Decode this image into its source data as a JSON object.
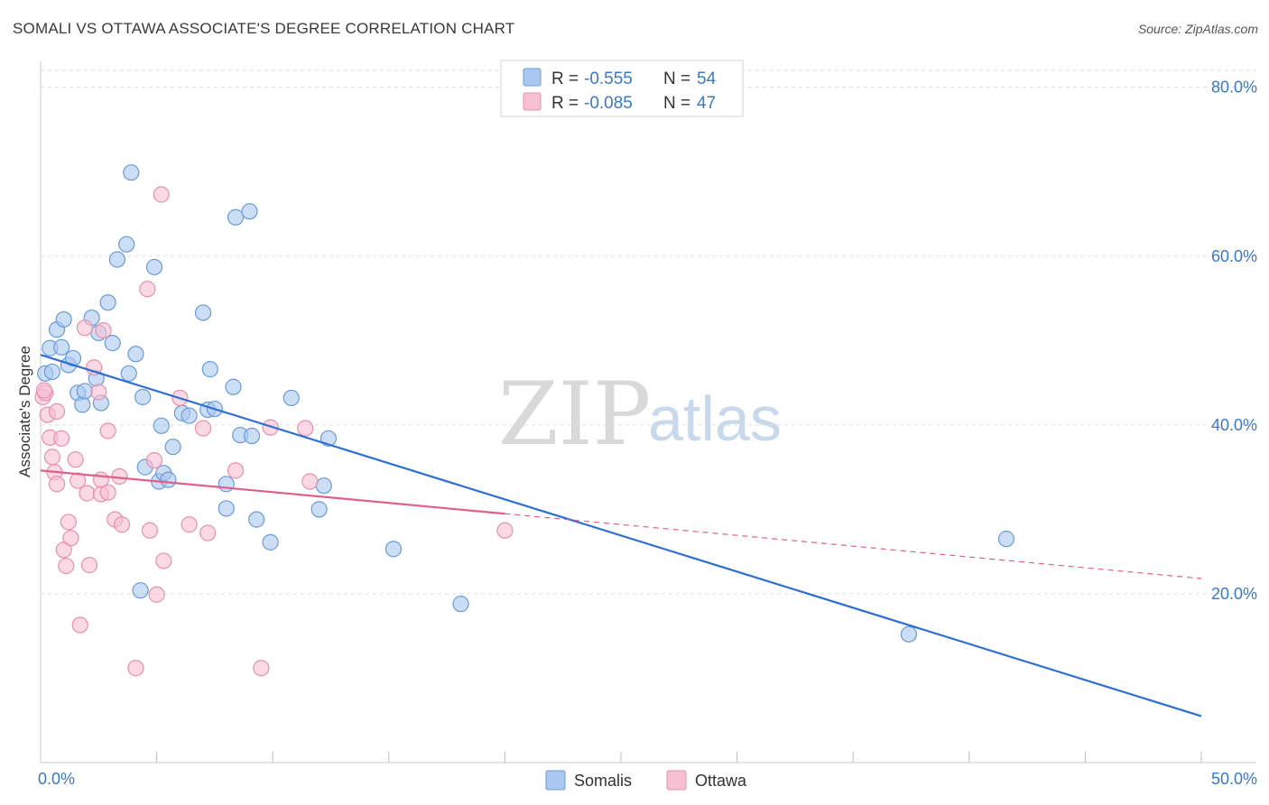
{
  "title": "SOMALI VS OTTAWA ASSOCIATE'S DEGREE CORRELATION CHART",
  "source": "Source: ZipAtlas.com",
  "watermark": {
    "zip": "ZIP",
    "atlas": "atlas"
  },
  "colors": {
    "somalis_fill": "#aac8ef",
    "somalis_stroke": "#6a9bd8",
    "somalis_line": "#2f6fd0",
    "ottawa_fill": "#f6c0d2",
    "ottawa_stroke": "#e890ae",
    "ottawa_line": "#e0608a",
    "grid": "#dddddd",
    "axis_text": "#3b78c9"
  },
  "legend": {
    "rows": [
      {
        "r_label": "R =",
        "r_value": "-0.555",
        "n_label": "N =",
        "n_value": "54",
        "series": "Somalis"
      },
      {
        "r_label": "R =",
        "r_value": "-0.085",
        "n_label": "N =",
        "n_value": "47",
        "series": "Ottawa"
      }
    ]
  },
  "bottom_legend": [
    "Somalis",
    "Ottawa"
  ],
  "chart_data": {
    "type": "scatter",
    "title": "SOMALI VS OTTAWA ASSOCIATE'S DEGREE CORRELATION CHART",
    "xlabel": "",
    "ylabel": "Associate's Degree",
    "xlim": [
      0,
      50
    ],
    "ylim": [
      0,
      82
    ],
    "x_tick_labels": [
      {
        "value": 0,
        "label": "0.0%"
      },
      {
        "value": 50,
        "label": "50.0%"
      }
    ],
    "y_tick_labels": [
      {
        "value": 20,
        "label": "20.0%"
      },
      {
        "value": 40,
        "label": "40.0%"
      },
      {
        "value": 60,
        "label": "60.0%"
      },
      {
        "value": 80,
        "label": "80.0%"
      }
    ],
    "y_gridlines": [
      20,
      40,
      60,
      80,
      82
    ],
    "series": [
      {
        "name": "Somalis",
        "r": -0.555,
        "n": 54,
        "trend": {
          "x0": 0,
          "y0": 48.3,
          "x1": 50,
          "y1": 5.5,
          "solid_to": 50
        },
        "points": [
          [
            0.2,
            46.1
          ],
          [
            0.4,
            49.1
          ],
          [
            0.5,
            46.3
          ],
          [
            0.7,
            51.3
          ],
          [
            0.9,
            49.2
          ],
          [
            1.0,
            52.5
          ],
          [
            1.2,
            47.1
          ],
          [
            1.4,
            47.9
          ],
          [
            1.6,
            43.8
          ],
          [
            1.8,
            42.4
          ],
          [
            1.9,
            44.0
          ],
          [
            2.2,
            52.7
          ],
          [
            2.4,
            45.5
          ],
          [
            2.6,
            42.6
          ],
          [
            2.5,
            50.9
          ],
          [
            3.1,
            49.7
          ],
          [
            2.9,
            54.5
          ],
          [
            3.3,
            59.6
          ],
          [
            3.7,
            61.4
          ],
          [
            3.8,
            46.1
          ],
          [
            3.9,
            69.9
          ],
          [
            4.1,
            48.4
          ],
          [
            4.3,
            20.4
          ],
          [
            4.4,
            43.3
          ],
          [
            4.5,
            35.0
          ],
          [
            4.9,
            58.7
          ],
          [
            5.1,
            33.3
          ],
          [
            5.2,
            39.9
          ],
          [
            5.3,
            34.3
          ],
          [
            5.5,
            33.5
          ],
          [
            5.7,
            37.4
          ],
          [
            6.1,
            41.4
          ],
          [
            6.4,
            41.1
          ],
          [
            7.0,
            53.3
          ],
          [
            7.2,
            41.8
          ],
          [
            7.3,
            46.6
          ],
          [
            7.5,
            41.9
          ],
          [
            8.0,
            30.1
          ],
          [
            8.0,
            33.0
          ],
          [
            8.3,
            44.5
          ],
          [
            8.4,
            64.6
          ],
          [
            8.6,
            38.8
          ],
          [
            9.0,
            65.3
          ],
          [
            9.1,
            38.7
          ],
          [
            9.3,
            28.8
          ],
          [
            9.9,
            26.1
          ],
          [
            10.8,
            43.2
          ],
          [
            12.0,
            30.0
          ],
          [
            12.2,
            32.8
          ],
          [
            12.4,
            38.4
          ],
          [
            15.2,
            25.3
          ],
          [
            18.1,
            18.8
          ],
          [
            37.4,
            15.2
          ],
          [
            41.6,
            26.5
          ]
        ]
      },
      {
        "name": "Ottawa",
        "r": -0.085,
        "n": 47,
        "trend": {
          "x0": 0,
          "y0": 34.6,
          "x1": 50,
          "y1": 21.8,
          "solid_to": 20
        },
        "points": [
          [
            0.1,
            43.3
          ],
          [
            0.2,
            43.8
          ],
          [
            0.3,
            41.2
          ],
          [
            0.4,
            38.5
          ],
          [
            0.5,
            36.2
          ],
          [
            0.6,
            34.4
          ],
          [
            0.7,
            33.0
          ],
          [
            0.7,
            41.6
          ],
          [
            0.9,
            38.4
          ],
          [
            1.0,
            25.2
          ],
          [
            1.1,
            23.3
          ],
          [
            1.2,
            28.5
          ],
          [
            1.3,
            26.6
          ],
          [
            1.5,
            35.9
          ],
          [
            1.6,
            33.4
          ],
          [
            1.7,
            16.3
          ],
          [
            1.9,
            51.5
          ],
          [
            2.0,
            31.9
          ],
          [
            2.1,
            23.4
          ],
          [
            2.3,
            46.8
          ],
          [
            2.5,
            43.9
          ],
          [
            2.6,
            33.5
          ],
          [
            2.6,
            31.8
          ],
          [
            2.7,
            51.2
          ],
          [
            2.9,
            39.3
          ],
          [
            2.9,
            32.0
          ],
          [
            3.2,
            28.8
          ],
          [
            3.4,
            33.9
          ],
          [
            3.5,
            28.2
          ],
          [
            4.1,
            11.2
          ],
          [
            4.6,
            56.1
          ],
          [
            4.7,
            27.5
          ],
          [
            4.9,
            35.8
          ],
          [
            5.0,
            19.9
          ],
          [
            5.2,
            67.3
          ],
          [
            5.3,
            23.9
          ],
          [
            6.0,
            43.2
          ],
          [
            6.4,
            28.2
          ],
          [
            7.0,
            39.6
          ],
          [
            7.2,
            27.2
          ],
          [
            8.4,
            34.6
          ],
          [
            9.5,
            11.2
          ],
          [
            9.9,
            39.7
          ],
          [
            11.4,
            39.6
          ],
          [
            11.6,
            33.3
          ],
          [
            20.0,
            27.5
          ],
          [
            0.15,
            44.1
          ]
        ]
      }
    ]
  }
}
